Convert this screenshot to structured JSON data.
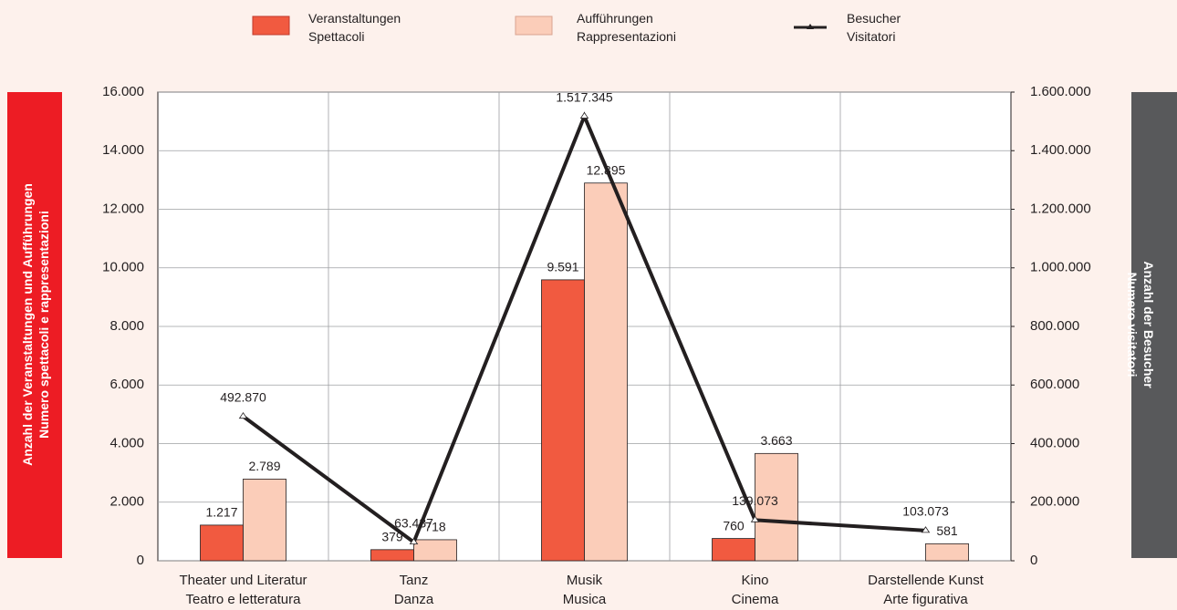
{
  "chart_data": {
    "type": "bar_line",
    "categories": [
      [
        "Theater und Literatur",
        "Teatro e letteratura"
      ],
      [
        "Tanz",
        "Danza"
      ],
      [
        "Musik",
        "Musica"
      ],
      [
        "Kino",
        "Cinema"
      ],
      [
        "Darstellende Kunst",
        "Arte figurativa"
      ]
    ],
    "series": [
      {
        "name": [
          "Veranstaltungen",
          "Spettacoli"
        ],
        "type": "bar",
        "color": "#f15a40",
        "values": [
          1217,
          379,
          9591,
          760,
          null
        ],
        "value_labels": [
          "1.217",
          "379",
          "9.591",
          "760",
          null
        ]
      },
      {
        "name": [
          "Aufführungen",
          "Rappresentazioni"
        ],
        "type": "bar",
        "color": "#fbcdb9",
        "values": [
          2789,
          718,
          12895,
          3663,
          581
        ],
        "value_labels": [
          "2.789",
          "718",
          "12.895",
          "3.663",
          "581"
        ]
      },
      {
        "name": [
          "Besucher",
          "Visitatori"
        ],
        "type": "line",
        "axis": "y2",
        "color": "#231f20",
        "values": [
          492870,
          63437,
          1517345,
          139073,
          103073
        ],
        "value_labels": [
          "492.870",
          "63.437",
          "1.517.345",
          "139.073",
          "103.073"
        ]
      }
    ],
    "ylabel": [
      "Anzahl der Veranstaltungen und Aufführungen",
      "Numero spettacoli e rappresentazioni"
    ],
    "y2label": [
      "Anzahl der Besucher",
      "Numero visitatori"
    ],
    "ylim": [
      0,
      16000
    ],
    "yticks": [
      0,
      {
        "value": 2000,
        "label": "2.000"
      },
      {
        "value": 4000,
        "label": "4.000"
      },
      {
        "value": 6000,
        "label": "6.000"
      },
      {
        "value": 8000,
        "label": "8.000"
      },
      {
        "value": 10000,
        "label": "10.000"
      },
      {
        "value": 12000,
        "label": "12.000"
      },
      {
        "value": 14000,
        "label": "14.000"
      },
      {
        "value": 16000,
        "label": "16.000"
      }
    ],
    "y2lim": [
      0,
      1600000
    ],
    "y2ticks": [
      0,
      {
        "value": 200000,
        "label": "200.000"
      },
      {
        "value": 400000,
        "label": "400.000"
      },
      {
        "value": 600000,
        "label": "600.000"
      },
      {
        "value": 800000,
        "label": "800.000"
      },
      {
        "value": 1000000,
        "label": "1.000.000"
      },
      {
        "value": 1200000,
        "label": "1.200.000"
      },
      {
        "value": 1400000,
        "label": "1.400.000"
      },
      {
        "value": 1600000,
        "label": "1.600.000"
      }
    ],
    "grid": true,
    "legend": "top"
  }
}
